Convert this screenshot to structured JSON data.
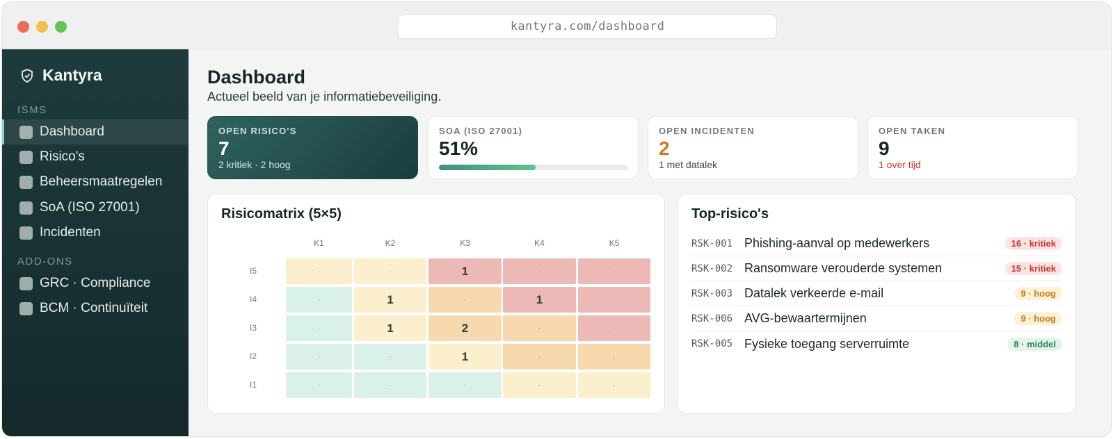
{
  "browser": {
    "url": "kantyra.com/dashboard"
  },
  "sidebar": {
    "brand": {
      "name": "Kantyra",
      "icon": "shield-icon"
    },
    "sections": [
      {
        "label": "ISMS",
        "items": [
          {
            "label": "Dashboard",
            "active": true
          },
          {
            "label": "Risico's",
            "active": false
          },
          {
            "label": "Beheersmaatregelen",
            "active": false
          },
          {
            "label": "SoA (ISO 27001)",
            "active": false
          },
          {
            "label": "Incidenten",
            "active": false
          }
        ]
      },
      {
        "label": "ADD-ONS",
        "items": [
          {
            "label": "GRC · Compliance",
            "active": false
          },
          {
            "label": "BCM · Continuïteit",
            "active": false
          }
        ]
      }
    ]
  },
  "main": {
    "title": "Dashboard",
    "subtitle": "Actueel beeld van je informatiebeveiliging.",
    "stats": [
      {
        "label": "OPEN RISICO'S",
        "value": "7",
        "sub": "2 kritiek · 2 hoog"
      },
      {
        "label": "SOA (ISO 27001)",
        "value": "51%",
        "progress": 0.51
      },
      {
        "label": "OPEN INCIDENTEN",
        "value": "2",
        "sub": "1 met datalek"
      },
      {
        "label": "OPEN TAKEN",
        "value": "9",
        "sub": "1 over tijd"
      }
    ],
    "matrix": {
      "title": "Risicomatrix (5×5)",
      "columns": [
        "K1",
        "K2",
        "K3",
        "K4",
        "K5"
      ],
      "rows": [
        {
          "label": "I5",
          "cells": [
            "·",
            "·",
            "1",
            "·",
            "·"
          ],
          "levels": [
            "medium",
            "medium",
            "critical",
            "critical",
            "critical"
          ]
        },
        {
          "label": "I4",
          "cells": [
            "·",
            "1",
            "·",
            "1",
            "·"
          ],
          "levels": [
            "low",
            "medium",
            "high",
            "critical",
            "critical"
          ]
        },
        {
          "label": "I3",
          "cells": [
            "·",
            "1",
            "2",
            "·",
            "·"
          ],
          "levels": [
            "low",
            "medium",
            "high",
            "high",
            "critical"
          ]
        },
        {
          "label": "I2",
          "cells": [
            "·",
            "·",
            "1",
            "·",
            "·"
          ],
          "levels": [
            "low",
            "low",
            "medium",
            "high",
            "high"
          ]
        },
        {
          "label": "I1",
          "cells": [
            "·",
            "·",
            "·",
            "·",
            "·"
          ],
          "levels": [
            "low",
            "low",
            "low",
            "medium",
            "medium"
          ]
        }
      ]
    },
    "top_risks": {
      "title": "Top-risico's",
      "items": [
        {
          "id": "RSK-001",
          "title": "Phishing-aanval op medewerkers",
          "badge": "16 · kritiek",
          "level": "critical"
        },
        {
          "id": "RSK-002",
          "title": "Ransomware verouderde systemen",
          "badge": "15 · kritiek",
          "level": "critical"
        },
        {
          "id": "RSK-003",
          "title": "Datalek verkeerde e-mail",
          "badge": "9 · hoog",
          "level": "high"
        },
        {
          "id": "RSK-006",
          "title": "AVG-bewaartermijnen",
          "badge": "9 · hoog",
          "level": "high"
        },
        {
          "id": "RSK-005",
          "title": "Fysieke toegang serverruimte",
          "badge": "8 · middel",
          "level": "medium"
        }
      ]
    }
  },
  "colors": {
    "critical_cell": "#ecb9b6",
    "high_cell": "#f6d9ad",
    "medium_cell": "#fbefcd",
    "low_cell": "#d9f1e7",
    "critical_badge_bg": "#fde4e3",
    "critical_badge_fg": "#c8362f",
    "high_badge_bg": "#fdf1d8",
    "high_badge_fg": "#cc7a12",
    "medium_badge_bg": "#e3f4ea",
    "medium_badge_fg": "#2d8552",
    "incidents_value": "#cf7a22",
    "overdue_text": "#c8362f"
  }
}
